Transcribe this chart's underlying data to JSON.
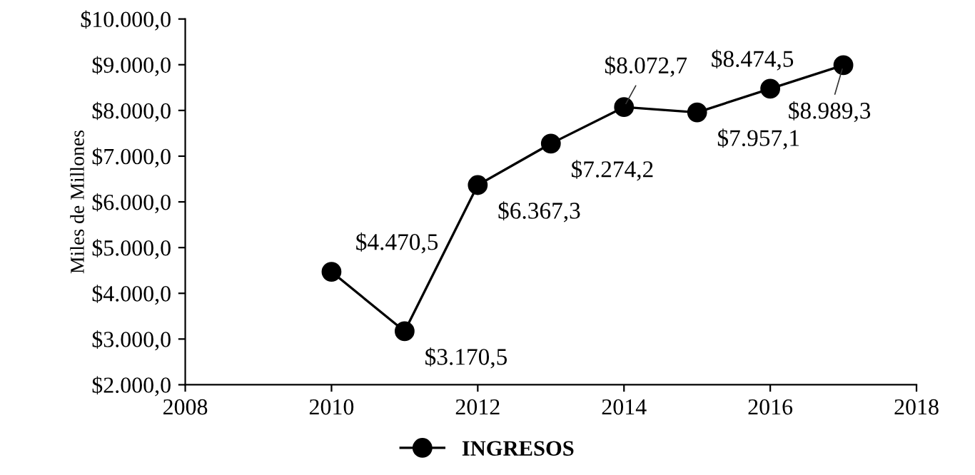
{
  "chart_data": {
    "type": "line",
    "ylabel": "Miles de Millones",
    "x": [
      2010,
      2011,
      2012,
      2013,
      2014,
      2015,
      2016,
      2017
    ],
    "series": [
      {
        "name": "INGRESOS",
        "color": "#000000",
        "values": [
          4470.5,
          3170.5,
          6367.3,
          7274.2,
          8072.7,
          7957.1,
          8474.5,
          8989.3
        ],
        "value_labels": [
          "$4.470,5",
          "$3.170,5",
          "$6.367,3",
          "$7.274,2",
          "$8.072,7",
          "$7.957,1",
          "$8.474,5",
          "$8.989,3"
        ]
      }
    ],
    "xlim": [
      2008,
      2018
    ],
    "xticks": [
      2008,
      2010,
      2012,
      2014,
      2016,
      2018
    ],
    "ylim": [
      2000,
      10000
    ],
    "yticks": [
      {
        "value": 2000,
        "label": "$2.000,0"
      },
      {
        "value": 3000,
        "label": "$3.000,0"
      },
      {
        "value": 4000,
        "label": "$4.000,0"
      },
      {
        "value": 5000,
        "label": "$5.000,0"
      },
      {
        "value": 6000,
        "label": "$6.000,0"
      },
      {
        "value": 7000,
        "label": "$7.000,0"
      },
      {
        "value": 8000,
        "label": "$8.000,0"
      },
      {
        "value": 9000,
        "label": "$9.000,0"
      },
      {
        "value": 10000,
        "label": "$10.000,0"
      }
    ],
    "grid": false,
    "legend": "bottom",
    "marker": "circle",
    "line_style": "solid"
  }
}
